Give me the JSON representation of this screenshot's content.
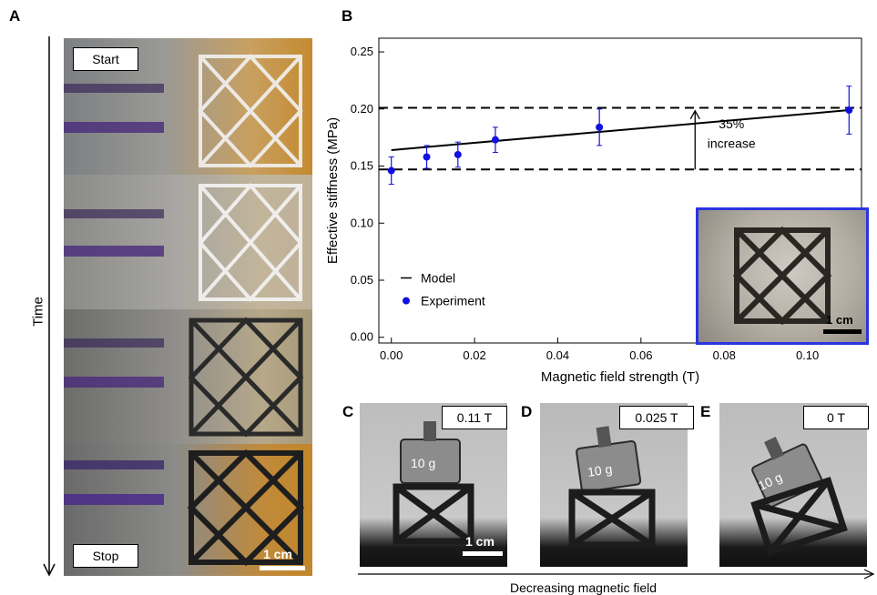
{
  "panels": {
    "a": "A",
    "b": "B",
    "c": "C",
    "d": "D",
    "e": "E"
  },
  "panel_a": {
    "axis_label": "Time",
    "start_label": "Start",
    "stop_label": "Stop",
    "scale_label": "1 cm"
  },
  "panel_b": {
    "inset_scale_label": "1 cm",
    "annotation_line1": "35%",
    "annotation_line2": "increase"
  },
  "panel_cde": {
    "c_field": "0.11 T",
    "d_field": "0.025 T",
    "e_field": "0 T",
    "weight_label": "10 g",
    "scale_label": "1 cm",
    "bottom_axis_label": "Decreasing magnetic field"
  },
  "chart_data": {
    "type": "scatter",
    "xlabel": "Magnetic field strength (T)",
    "ylabel": "Effective stiffness (MPa)",
    "xlim": [
      -0.003,
      0.113
    ],
    "ylim": [
      -0.005,
      0.262
    ],
    "xticks": [
      "0.00",
      "0.02",
      "0.04",
      "0.06",
      "0.08",
      "0.10"
    ],
    "yticks": [
      "0.00",
      "0.05",
      "0.10",
      "0.15",
      "0.20",
      "0.25"
    ],
    "series": [
      {
        "name": "Experiment",
        "color": "#1010e0",
        "x": [
          0.0,
          0.0085,
          0.016,
          0.025,
          0.05,
          0.11
        ],
        "y": [
          0.146,
          0.158,
          0.16,
          0.173,
          0.184,
          0.199
        ],
        "err": [
          0.012,
          0.01,
          0.011,
          0.011,
          0.016,
          0.021
        ]
      },
      {
        "name": "Model",
        "color": "#000000",
        "type": "line",
        "x": [
          0.0,
          0.11
        ],
        "y": [
          0.164,
          0.199
        ]
      }
    ],
    "hlines": [
      0.147,
      0.201
    ],
    "legend": "bottom-left",
    "grid": false
  }
}
